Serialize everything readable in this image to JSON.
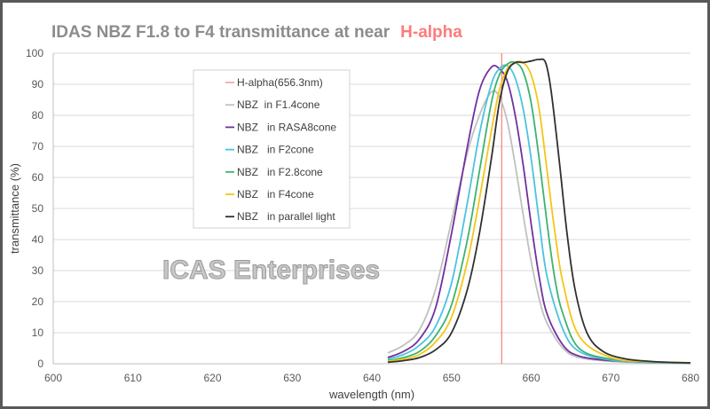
{
  "chart_data": {
    "type": "line",
    "title": "IDAS  NBZ  F1.8 to F4 transmittance  at  near",
    "title_accent": "H-alpha",
    "xlabel": "wavelength (nm)",
    "ylabel": "transmittance (%)",
    "xlim": [
      600,
      680
    ],
    "ylim": [
      0,
      100
    ],
    "x_ticks": [
      600,
      610,
      620,
      630,
      640,
      650,
      660,
      670,
      680
    ],
    "y_ticks": [
      0,
      10,
      20,
      30,
      40,
      50,
      60,
      70,
      80,
      90,
      100
    ],
    "grid": "horizontal",
    "legend_position": "top-left",
    "watermark": "ICAS Enterprises",
    "reference_line": {
      "name": "H-alpha(656.3nm)",
      "x": 656.3,
      "color": "#f08080"
    },
    "series": [
      {
        "name": "NBZ  in F1.4cone",
        "color": "#c0c0c0",
        "points": [
          [
            642,
            3.5
          ],
          [
            644,
            6
          ],
          [
            646,
            11
          ],
          [
            648,
            24
          ],
          [
            650,
            46
          ],
          [
            652,
            68
          ],
          [
            653.5,
            80
          ],
          [
            655,
            87.5
          ],
          [
            656,
            86
          ],
          [
            657,
            78
          ],
          [
            658,
            64
          ],
          [
            659,
            48
          ],
          [
            660,
            33
          ],
          [
            661,
            21
          ],
          [
            662,
            13
          ],
          [
            664,
            5
          ],
          [
            666,
            2
          ],
          [
            670,
            0.8
          ],
          [
            675,
            0.3
          ],
          [
            680,
            0.1
          ]
        ]
      },
      {
        "name": "NBZ   in RASA8cone",
        "color": "#7030a0",
        "points": [
          [
            642,
            2
          ],
          [
            644,
            4
          ],
          [
            646,
            8
          ],
          [
            648,
            18
          ],
          [
            650,
            42
          ],
          [
            652,
            70
          ],
          [
            653.5,
            88
          ],
          [
            655,
            95.5
          ],
          [
            656,
            95
          ],
          [
            657,
            91
          ],
          [
            658,
            80
          ],
          [
            659,
            64
          ],
          [
            660,
            45
          ],
          [
            661,
            28
          ],
          [
            662,
            16
          ],
          [
            664,
            6
          ],
          [
            666,
            2.5
          ],
          [
            670,
            1
          ],
          [
            675,
            0.5
          ],
          [
            680,
            0.2
          ]
        ]
      },
      {
        "name": "NBZ   in F2cone",
        "color": "#4bc3e0",
        "points": [
          [
            642,
            1.5
          ],
          [
            644,
            3
          ],
          [
            646,
            6
          ],
          [
            648,
            12
          ],
          [
            650,
            26
          ],
          [
            652,
            52
          ],
          [
            653.5,
            74
          ],
          [
            655,
            90
          ],
          [
            656,
            95
          ],
          [
            657,
            96
          ],
          [
            658,
            92
          ],
          [
            659,
            82
          ],
          [
            660,
            66
          ],
          [
            661,
            46
          ],
          [
            662,
            28
          ],
          [
            664,
            11
          ],
          [
            666,
            4
          ],
          [
            670,
            1.2
          ],
          [
            675,
            0.5
          ],
          [
            680,
            0.2
          ]
        ]
      },
      {
        "name": "NBZ   in F2.8cone",
        "color": "#3cb371",
        "points": [
          [
            642,
            1
          ],
          [
            644,
            2
          ],
          [
            646,
            4
          ],
          [
            648,
            9
          ],
          [
            650,
            19
          ],
          [
            652,
            40
          ],
          [
            653.5,
            62
          ],
          [
            655,
            84
          ],
          [
            656,
            93
          ],
          [
            657,
            96.5
          ],
          [
            658,
            97
          ],
          [
            659,
            94
          ],
          [
            660,
            84
          ],
          [
            661,
            66
          ],
          [
            662,
            45
          ],
          [
            663,
            27
          ],
          [
            664,
            16
          ],
          [
            666,
            5
          ],
          [
            670,
            1.5
          ],
          [
            675,
            0.6
          ],
          [
            680,
            0.2
          ]
        ]
      },
      {
        "name": "NBZ   in F4cone",
        "color": "#f5c518",
        "points": [
          [
            642,
            0.8
          ],
          [
            644,
            1.5
          ],
          [
            646,
            3
          ],
          [
            648,
            7
          ],
          [
            650,
            15
          ],
          [
            652,
            33
          ],
          [
            653.5,
            53
          ],
          [
            655,
            75
          ],
          [
            656,
            88
          ],
          [
            657,
            95
          ],
          [
            658,
            97
          ],
          [
            659,
            97
          ],
          [
            660,
            93
          ],
          [
            661,
            82
          ],
          [
            662,
            62
          ],
          [
            663,
            42
          ],
          [
            664,
            26
          ],
          [
            666,
            9
          ],
          [
            670,
            2
          ],
          [
            675,
            0.7
          ],
          [
            680,
            0.3
          ]
        ]
      },
      {
        "name": "NBZ   in parallel light",
        "color": "#303030",
        "points": [
          [
            642,
            0.5
          ],
          [
            644,
            1
          ],
          [
            646,
            2
          ],
          [
            648,
            4.5
          ],
          [
            650,
            10
          ],
          [
            652,
            24
          ],
          [
            653.5,
            42
          ],
          [
            655,
            66
          ],
          [
            656,
            84
          ],
          [
            657,
            94
          ],
          [
            658,
            97
          ],
          [
            659,
            97
          ],
          [
            660,
            97.5
          ],
          [
            661,
            98
          ],
          [
            661.8,
            97
          ],
          [
            662.5,
            88
          ],
          [
            663.5,
            66
          ],
          [
            664.5,
            42
          ],
          [
            665.5,
            24
          ],
          [
            667,
            10
          ],
          [
            669,
            4
          ],
          [
            672,
            1.5
          ],
          [
            676,
            0.6
          ],
          [
            680,
            0.3
          ]
        ]
      }
    ]
  }
}
